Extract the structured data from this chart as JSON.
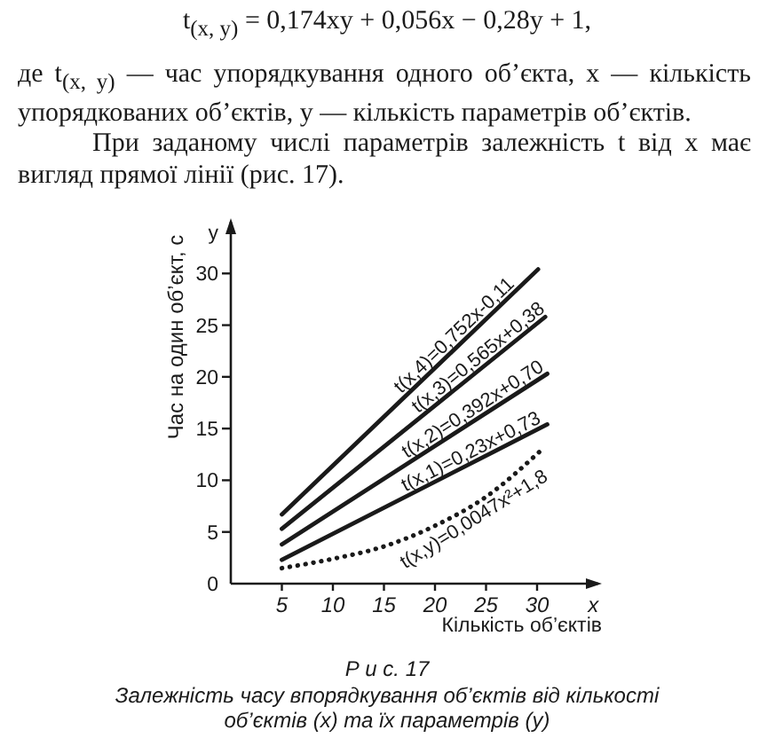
{
  "chart_data": {
    "type": "line",
    "title": "Р и с. 17",
    "subtitle": "Залежність часу впорядкування об’єктів від кількості об’єктів (x) та їх параметрів (y)",
    "xlabel": "Кількість об’єктів",
    "ylabel": "Час на один об’єкт, с",
    "annotations": [
      "t$_{(x, y)}$ = 0,174xy + 0,056x − 0,28y + 1,",
      "де t$_{(x, y)}$ — час упорядкування одного об’єкта, x — кількість упорядкованих об’єктів, y — кількість параметрів об’єктів.",
      "При заданому числі параметрів залежність t від x має вигляд прямої лінії (рис. 17)."
    ],
    "series": [
      {
        "name": "t(x,4)=0,752x-0,11",
        "color": "#1a1a1a",
        "x": [
          5,
          30.1
        ],
        "values": [
          6.7,
          30.4
        ]
      },
      {
        "name": "t(x,3)=0,565x+0,38",
        "color": "#1a1a1a",
        "x": [
          5,
          30.8
        ],
        "values": [
          5.3,
          25.8
        ]
      },
      {
        "name": "t(x,2)=0,392x+0,70",
        "color": "#1a1a1a",
        "x": [
          5,
          31.0
        ],
        "values": [
          3.8,
          20.3
        ]
      },
      {
        "name": "t(x,1)=0,23x+0,73",
        "color": "#1a1a1a",
        "x": [
          5,
          31.0
        ],
        "values": [
          2.3,
          15.4
        ]
      },
      {
        "name": "t(x,y)=0,0047x²+1,8",
        "color": "#1a1a1a",
        "line_style": "dotted",
        "x": [
          5,
          10,
          15,
          20,
          25,
          30.5
        ],
        "values": [
          1.5,
          2.4,
          3.6,
          5.6,
          8.4,
          13.0
        ]
      }
    ],
    "xlim": [
      0,
      36
    ],
    "xticks": [
      5,
      10,
      15,
      20,
      25,
      30,
      {
        "value": 35.5,
        "label": "x"
      }
    ],
    "ylim": [
      0,
      35
    ],
    "yticks": [
      0,
      5,
      10,
      15,
      20,
      25,
      30,
      {
        "value": 34,
        "label": "y"
      }
    ],
    "grid": false,
    "legend": false,
    "marker": "none",
    "line_style": "solid"
  }
}
